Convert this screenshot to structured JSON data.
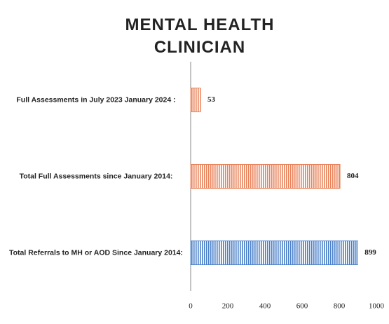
{
  "chart_data": {
    "type": "bar",
    "orientation": "horizontal",
    "title": "MENTAL HEALTH CLINICIAN",
    "categories": [
      "Full Assessments in July 2023 January 2024 :",
      "Total Full Assessments since January 2014:",
      "Total Referrals to MH or AOD Since January 2014:"
    ],
    "values": [
      53,
      804,
      899
    ],
    "colors": [
      "#e8825a",
      "#e8825a",
      "#4a7fc8"
    ],
    "xlim": [
      0,
      1000
    ],
    "xticks": [
      0,
      200,
      400,
      600,
      800,
      1000
    ],
    "grid": false
  }
}
